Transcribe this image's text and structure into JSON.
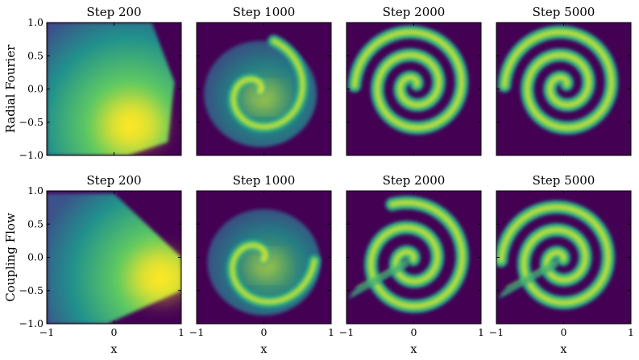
{
  "chart_data": {
    "type": "heatmap",
    "layout": {
      "rows": 2,
      "cols": 4
    },
    "row_labels": [
      "Radial Fourier",
      "Coupling Flow"
    ],
    "panel_titles": [
      "Step 200",
      "Step 1000",
      "Step 2000",
      "Step 5000"
    ],
    "xlabel": "x",
    "xlim": [
      -1,
      1
    ],
    "ylim": [
      -1,
      1
    ],
    "x_ticks": [
      "−1",
      "0",
      "1"
    ],
    "y_ticks": [
      "1.0",
      "0.5",
      "0.0",
      "−0.5",
      "−1.0"
    ],
    "colormap": "viridis",
    "colors": {
      "background": "#440154",
      "low": "#3b528b",
      "mid": "#21918c",
      "high": "#5ec962",
      "peak": "#fde725"
    },
    "panels": [
      {
        "row": 0,
        "col": 0,
        "title": "Step 200",
        "pattern": "blob",
        "spiral_turns": 0,
        "peak_x": 0.3,
        "peak_y": -0.55
      },
      {
        "row": 0,
        "col": 1,
        "title": "Step 1000",
        "pattern": "partial-spiral",
        "spiral_turns": 1.2,
        "peak_x": -0.1,
        "peak_y": -0.05
      },
      {
        "row": 0,
        "col": 2,
        "title": "Step 2000",
        "pattern": "spiral",
        "spiral_turns": 2.5,
        "peak_x": 0.0,
        "peak_y": 0.05
      },
      {
        "row": 0,
        "col": 3,
        "title": "Step 5000",
        "pattern": "spiral",
        "spiral_turns": 2.5,
        "peak_x": 0.0,
        "peak_y": 0.05
      },
      {
        "row": 1,
        "col": 0,
        "title": "Step 200",
        "pattern": "blob",
        "spiral_turns": 0,
        "peak_x": 0.7,
        "peak_y": -0.3
      },
      {
        "row": 1,
        "col": 1,
        "title": "Step 1000",
        "pattern": "partial-spiral",
        "spiral_turns": 1.0,
        "peak_x": -0.05,
        "peak_y": -0.05
      },
      {
        "row": 1,
        "col": 2,
        "title": "Step 2000",
        "pattern": "spiral-with-streaks",
        "spiral_turns": 2.3,
        "peak_x": -0.05,
        "peak_y": -0.05
      },
      {
        "row": 1,
        "col": 3,
        "title": "Step 5000",
        "pattern": "spiral-with-streaks",
        "spiral_turns": 2.5,
        "peak_x": -0.05,
        "peak_y": -0.05
      }
    ]
  }
}
